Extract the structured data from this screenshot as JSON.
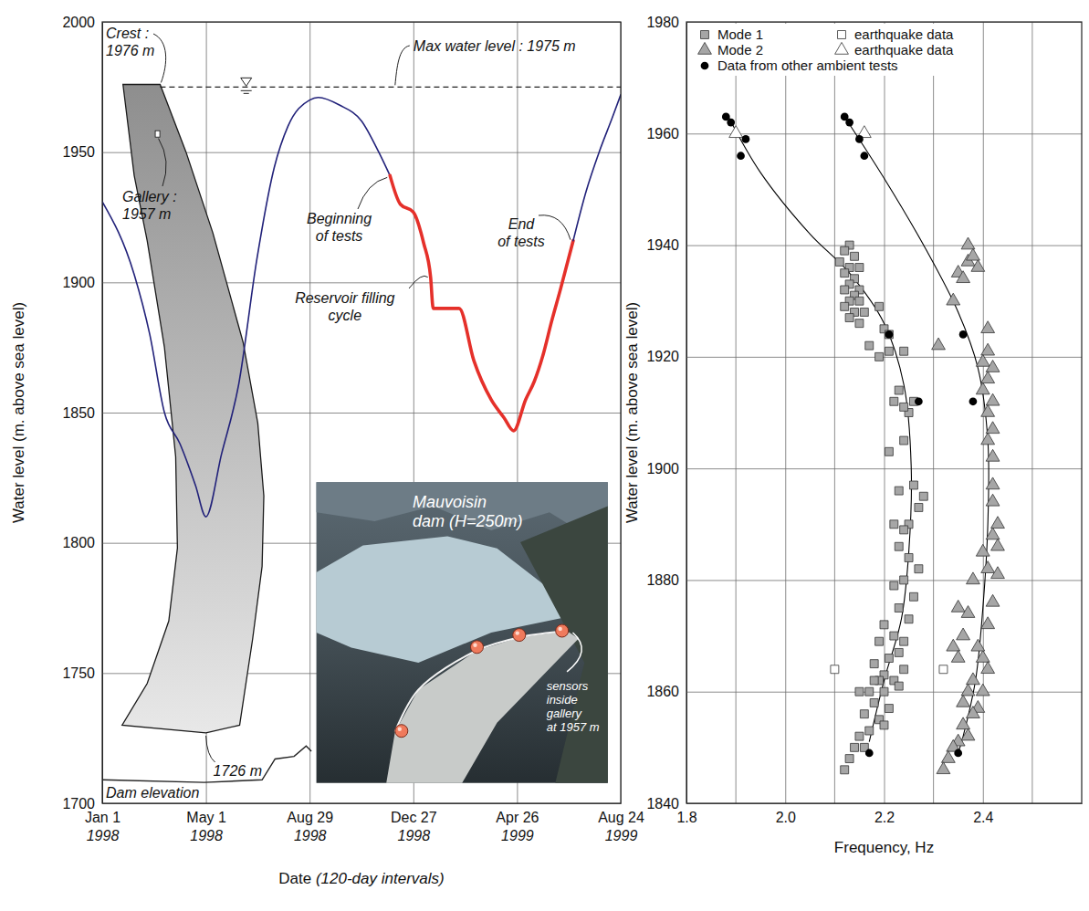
{
  "chart_data": [
    {
      "type": "line",
      "x_label": "Date (120-day intervals)",
      "y_label": "Water level (m. above sea level)",
      "xlim": [
        "1998-01-01",
        "1999-08-24"
      ],
      "xticks": [
        {
          "value": "1998-01-01",
          "label": "Jan 1\n1998"
        },
        {
          "value": "1998-05-01",
          "label": "May 1\n1998"
        },
        {
          "value": "1998-08-29",
          "label": "Aug 29\n1998"
        },
        {
          "value": "1998-12-27",
          "label": "Dec 27\n1998"
        },
        {
          "value": "1999-04-26",
          "label": "Apr 26\n1999"
        },
        {
          "value": "1999-08-24",
          "label": "Aug 24\n1999"
        }
      ],
      "ylim": [
        1700,
        2000
      ],
      "yticks": [
        1700,
        1750,
        1800,
        1850,
        1900,
        1950,
        2000
      ],
      "grid": true,
      "series": [
        {
          "color": "#22227a",
          "line_style": "solid",
          "x": [
            "1998-01-01",
            "1998-02-07",
            "1998-02-25",
            "1998-03-14",
            "1998-04-01",
            "1998-04-19",
            "1998-05-01",
            "1998-05-19",
            "1998-06-08",
            "1998-06-29",
            "1998-07-19",
            "1998-08-04",
            "1998-08-29",
            "1998-09-08",
            "1998-10-03",
            "1998-10-28",
            "1998-11-17",
            "1998-11-30"
          ],
          "values": [
            1931,
            1903,
            1880,
            1850,
            1838,
            1822,
            1810,
            1834,
            1861,
            1909,
            1944,
            1960,
            1970,
            1971,
            1968,
            1962,
            1950,
            1941
          ]
        },
        {
          "color": "#e5302a",
          "line_style": "thick",
          "x": [
            "1998-11-30",
            "1998-12-12",
            "1998-12-27",
            "1999-01-08",
            "1999-01-16",
            "1999-01-19",
            "1999-02-18",
            "1999-03-07",
            "1999-03-27",
            "1999-04-11",
            "1999-04-22",
            "1999-05-06",
            "1999-05-16",
            "1999-05-26",
            "1999-06-05",
            "1999-06-15",
            "1999-06-30"
          ],
          "values": [
            1941,
            1930,
            1927,
            1915,
            1902,
            1890,
            1890,
            1870,
            1855,
            1848,
            1843,
            1855,
            1862,
            1872,
            1885,
            1897,
            1916
          ]
        },
        {
          "color": "#22227a",
          "line_style": "solid",
          "x": [
            "1999-06-30",
            "1999-07-15",
            "1999-07-30",
            "1999-08-14",
            "1999-08-24"
          ],
          "values": [
            1916,
            1935,
            1950,
            1963,
            1972
          ]
        }
      ],
      "max_water_level": 1975,
      "dam_outline": {
        "x": [
          "1998-01-25",
          "1998-03-09",
          "1998-04-08",
          "1998-05-09",
          "1998-06-13",
          "1998-06-30",
          "1998-07-07",
          "1998-07-05",
          "1998-06-24",
          "1998-06-09",
          "1998-05-01",
          "1998-01-24",
          "1998-02-22",
          "1998-03-19",
          "1998-03-29",
          "1998-03-27",
          "1998-03-14",
          "1998-02-22",
          "1998-02-07"
        ],
        "y": [
          1976,
          1976,
          1950,
          1919,
          1877,
          1846,
          1818,
          1791,
          1763,
          1730,
          1727,
          1730,
          1746,
          1770,
          1798,
          1833,
          1875,
          1916,
          1941
        ]
      },
      "gallery": {
        "x": "1998-03-06",
        "y": 1957
      },
      "terrain": {
        "x": [
          "1998-01-01",
          "1998-04-29",
          "1998-07-05",
          "1998-07-20",
          "1998-08-11",
          "1998-08-25",
          "1998-08-31"
        ],
        "y": [
          1709,
          1708,
          1709,
          1717,
          1718,
          1722,
          1720
        ]
      },
      "annotations": [
        "Crest :\n1976 m",
        "Gallery :\n1957 m",
        "Max water level : 1975 m",
        "Beginning\nof tests",
        "Reservoir filling\ncycle",
        "End\nof tests",
        "1726 m",
        "Dam elevation"
      ],
      "photo_labels": [
        "Mauvoisin\ndam (H=250m)",
        "sensors\ninside\ngallery\nat 1957 m"
      ]
    },
    {
      "type": "scatter",
      "x_label": "Frequency, Hz",
      "y_label": "Water level (m. above sea level)",
      "xlim": [
        1.8,
        2.6
      ],
      "xticks": [
        1.8,
        {
          "value": 2,
          "label": "2.0"
        },
        2.2,
        2.4
      ],
      "ylim": [
        1840,
        1980
      ],
      "yticks": [
        1840,
        1860,
        1880,
        1900,
        1920,
        1940,
        1960,
        1980
      ],
      "grid": true,
      "legend": "top-left",
      "series": [
        {
          "name": "Mode 1",
          "type": "scatter",
          "marker": "square",
          "color": "#a6a6a6",
          "x": [
            2.13,
            2.12,
            2.14,
            2.11,
            2.13,
            2.15,
            2.12,
            2.14,
            2.13,
            2.15,
            2.12,
            2.14,
            2.13,
            2.15,
            2.12,
            2.14,
            2.16,
            2.13,
            2.15,
            2.19,
            2.2,
            2.21,
            2.21,
            2.19,
            2.17,
            2.24,
            2.23,
            2.22,
            2.26,
            2.25,
            2.24,
            2.21,
            2.26,
            2.28,
            2.23,
            2.27,
            2.25,
            2.24,
            2.22,
            2.23,
            2.25,
            2.27,
            2.24,
            2.22,
            2.26,
            2.23,
            2.25,
            2.2,
            2.22,
            2.24,
            2.19,
            2.21,
            2.23,
            2.18,
            2.2,
            2.22,
            2.19,
            2.24,
            2.17,
            2.2,
            2.23,
            2.15,
            2.18,
            2.21,
            2.16,
            2.19,
            2.17,
            2.15,
            2.2,
            2.14,
            2.16,
            2.13,
            2.12,
            2.18,
            2.24
          ],
          "values": [
            1940,
            1939,
            1938,
            1937,
            1936,
            1936,
            1935,
            1934,
            1933,
            1932,
            1932,
            1931,
            1930,
            1930,
            1929,
            1928,
            1928,
            1927,
            1926,
            1929,
            1925,
            1924,
            1921,
            1920,
            1922,
            1921,
            1914,
            1912,
            1912,
            1910,
            1905,
            1903,
            1897,
            1895,
            1896,
            1893,
            1890,
            1889,
            1890,
            1886,
            1884,
            1882,
            1880,
            1879,
            1877,
            1875,
            1873,
            1872,
            1870,
            1869,
            1869,
            1866,
            1867,
            1865,
            1863,
            1862,
            1862,
            1864,
            1860,
            1860,
            1861,
            1860,
            1858,
            1857,
            1856,
            1855,
            1853,
            1852,
            1854,
            1850,
            1850,
            1848,
            1846,
            1862,
            1911
          ]
        },
        {
          "name": "earthquake data",
          "type": "scatter",
          "marker": "square",
          "color": "#ffffff",
          "x": [
            2.1,
            2.32
          ],
          "values": [
            1864,
            1864
          ]
        },
        {
          "name": "Mode 2",
          "type": "scatter",
          "marker": "triangle",
          "color": "#a6a6a6",
          "x": [
            2.37,
            2.37,
            2.35,
            2.36,
            2.39,
            2.38,
            2.34,
            2.31,
            2.41,
            2.41,
            2.4,
            2.42,
            2.41,
            2.4,
            2.42,
            2.41,
            2.42,
            2.41,
            2.42,
            2.42,
            2.42,
            2.43,
            2.42,
            2.43,
            2.41,
            2.43,
            2.42,
            2.41,
            2.4,
            2.41,
            2.35,
            2.37,
            2.36,
            2.34,
            2.35,
            2.39,
            2.38,
            2.37,
            2.36,
            2.39,
            2.4,
            2.38,
            2.36,
            2.37,
            2.35,
            2.34,
            2.33,
            2.32,
            2.38,
            2.4
          ],
          "values": [
            1940,
            1937,
            1935,
            1934,
            1936,
            1938,
            1930,
            1922,
            1925,
            1921,
            1919,
            1918,
            1916,
            1914,
            1912,
            1910,
            1907,
            1905,
            1902,
            1897,
            1894,
            1890,
            1888,
            1886,
            1882,
            1881,
            1876,
            1872,
            1866,
            1864,
            1875,
            1874,
            1870,
            1868,
            1866,
            1868,
            1862,
            1860,
            1858,
            1857,
            1860,
            1856,
            1854,
            1852,
            1851,
            1850,
            1848,
            1846,
            1880,
            1885
          ]
        },
        {
          "name": "earthquake data",
          "type": "scatter",
          "marker": "triangle",
          "color": "#ffffff",
          "x": [
            1.9,
            2.16
          ],
          "values": [
            1960,
            1960
          ]
        },
        {
          "name": "Data from other ambient tests",
          "type": "scatter",
          "marker": "circle",
          "color": "#000000",
          "x": [
            1.88,
            1.89,
            1.92,
            1.91,
            2.12,
            2.13,
            2.15,
            2.16,
            2.21,
            2.27,
            2.36,
            2.38,
            2.17,
            2.35
          ],
          "values": [
            1963,
            1962,
            1959,
            1956,
            1963,
            1962,
            1959,
            1956,
            1924,
            1912,
            1924,
            1912,
            1849,
            1849
          ]
        },
        {
          "type": "line",
          "color": "#000000",
          "x": [
            1.885,
            1.95,
            2.05,
            2.13,
            2.2,
            2.24,
            2.255,
            2.25,
            2.235,
            2.2,
            2.17
          ],
          "values": [
            1963,
            1953,
            1942,
            1935,
            1926,
            1915,
            1900,
            1885,
            1873,
            1862,
            1851
          ]
        },
        {
          "type": "line",
          "color": "#000000",
          "x": [
            2.12,
            2.2,
            2.28,
            2.35,
            2.39,
            2.41,
            2.41,
            2.4,
            2.385,
            2.36,
            2.35
          ],
          "values": [
            1963,
            1952,
            1940,
            1928,
            1918,
            1905,
            1890,
            1875,
            1862,
            1852,
            1849
          ]
        }
      ]
    }
  ]
}
